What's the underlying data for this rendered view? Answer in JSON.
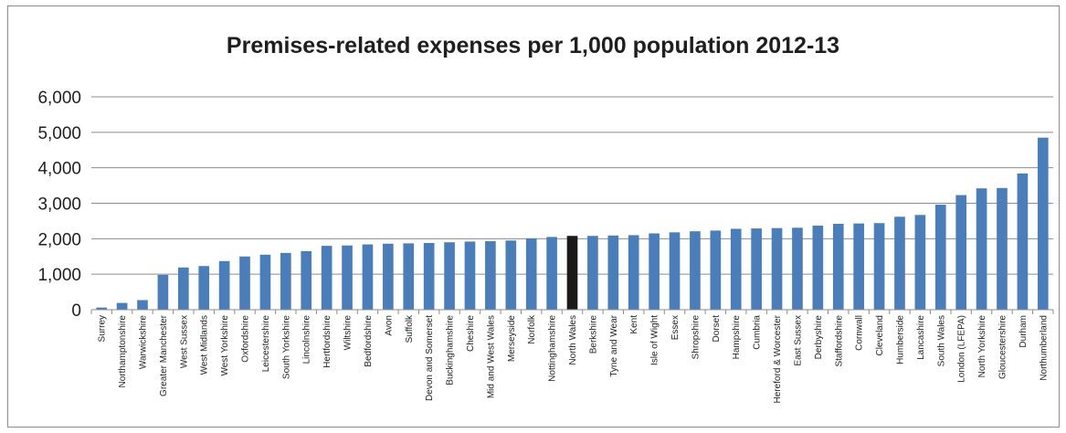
{
  "chart_data": {
    "type": "bar",
    "title": "Premises-related expenses per 1,000 population 2012-13",
    "xlabel": "",
    "ylabel": "",
    "ylim": [
      0,
      6000
    ],
    "yticks": [
      "0",
      "1,000",
      "2,000",
      "3,000",
      "4,000",
      "5,000",
      "6,000"
    ],
    "grid": true,
    "legend": "none",
    "colors": {
      "bar": "#4a7ebb",
      "highlight": "#1a1a1a",
      "grid": "#8c8c8c"
    },
    "highlight_category": "North Wales",
    "categories": [
      "Surrey",
      "Northamptonshire",
      "Warwickshire",
      "Greater Manchester",
      "West Sussex",
      "West Midlands",
      "West Yorkshire",
      "Oxfordshire",
      "Leicestershire",
      "South Yorkshire",
      "Lincolnshire",
      "Hertfordshire",
      "Wiltshire",
      "Bedfordshire",
      "Avon",
      "Suffolk",
      "Devon and Somerset",
      "Buckinghamshire",
      "Cheshire",
      "Mid and West Wales",
      "Merseyside",
      "Norfolk",
      "Nottinghamshire",
      "North Wales",
      "Berkshire",
      "Tyne and Wear",
      "Kent",
      "Isle of Wight",
      "Essex",
      "Shropshire",
      "Dorset",
      "Hampshire",
      "Cumbria",
      "Hereford & Worcester",
      "East Sussex",
      "Derbyshire",
      "Staffordshire",
      "Cornwall",
      "Cleveland",
      "Humberside",
      "Lancashire",
      "South Wales",
      "London (LFEPA)",
      "North Yorkshire",
      "Gloucestershire",
      "Durham",
      "Northumberland"
    ],
    "values": [
      60,
      190,
      270,
      980,
      1190,
      1230,
      1370,
      1500,
      1550,
      1600,
      1650,
      1800,
      1810,
      1840,
      1860,
      1870,
      1880,
      1900,
      1920,
      1930,
      1950,
      2010,
      2050,
      2080,
      2080,
      2090,
      2100,
      2150,
      2180,
      2210,
      2230,
      2280,
      2290,
      2300,
      2310,
      2370,
      2420,
      2430,
      2440,
      2620,
      2670,
      2960,
      3230,
      3420,
      3430,
      3840,
      4850
    ]
  }
}
